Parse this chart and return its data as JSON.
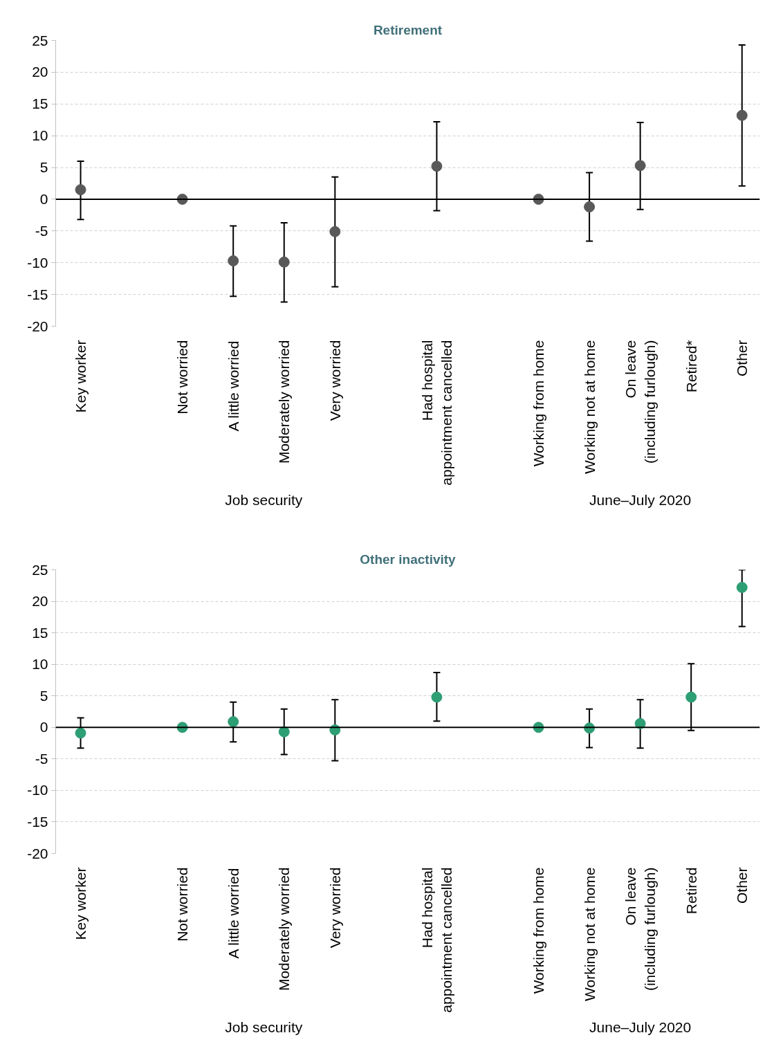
{
  "chart_data": [
    {
      "type": "scatter",
      "title": "Retirement",
      "categories": [
        "Key worker",
        null,
        "Not worried",
        "A little worried",
        "Moderately worried",
        "Very worried",
        null,
        "Had hospital\nappointment cancelled",
        null,
        "Working from home",
        "Working not at home",
        "On leave\n(including furlough)",
        "Retired*",
        "Other"
      ],
      "series": [
        {
          "color": "#595959",
          "values": [
            1.5,
            null,
            0,
            -9.7,
            -9.9,
            -5.1,
            null,
            5.2,
            null,
            0,
            -1.2,
            5.3,
            null,
            13.2
          ],
          "errors": [
            [
              -3.2,
              6.0
            ],
            null,
            null,
            [
              -15.3,
              -4.2
            ],
            [
              -16.2,
              -3.7
            ],
            [
              -13.8,
              3.5
            ],
            null,
            [
              -1.8,
              12.2
            ],
            null,
            null,
            [
              -6.6,
              4.2
            ],
            [
              -1.6,
              12.1
            ],
            null,
            [
              2.1,
              24.3
            ]
          ]
        }
      ],
      "ylim": [
        -20,
        25
      ],
      "yticks": [
        -20,
        -15,
        -10,
        -5,
        0,
        5,
        10,
        15,
        20,
        25
      ],
      "grid": "y",
      "marker": "circle",
      "ref_lines": [
        {
          "axis": "y",
          "value": 0,
          "color": "#000000"
        }
      ],
      "annotations": [
        "Job security",
        "June–July 2020"
      ]
    },
    {
      "type": "scatter",
      "title": "Other inactivity",
      "categories": [
        "Key worker",
        null,
        "Not worried",
        "A little worried",
        "Moderately worried",
        "Very worried",
        null,
        "Had hospital\nappointment cancelled",
        null,
        "Working from home",
        "Working not at home",
        "On leave\n(including furlough)",
        "Retired",
        "Other"
      ],
      "series": [
        {
          "color": "#2e9e74",
          "values": [
            -0.9,
            null,
            0,
            0.9,
            -0.7,
            -0.4,
            null,
            4.8,
            null,
            0,
            -0.1,
            0.6,
            4.8,
            22.2
          ],
          "errors": [
            [
              -3.3,
              1.5
            ],
            null,
            null,
            [
              -2.3,
              4.0
            ],
            [
              -4.3,
              2.9
            ],
            [
              -5.3,
              4.4
            ],
            null,
            [
              1.0,
              8.7
            ],
            null,
            null,
            [
              -3.2,
              2.9
            ],
            [
              -3.3,
              4.4
            ],
            [
              -0.5,
              10.1
            ],
            [
              16.0,
              25
            ]
          ]
        }
      ],
      "ylim": [
        -20,
        25
      ],
      "yticks": [
        -20,
        -15,
        -10,
        -5,
        0,
        5,
        10,
        15,
        20,
        25
      ],
      "grid": "y",
      "marker": "circle",
      "ref_lines": [
        {
          "axis": "y",
          "value": 0,
          "color": "#000000"
        }
      ],
      "annotations": [
        "Job security",
        "June–July 2020"
      ]
    }
  ]
}
